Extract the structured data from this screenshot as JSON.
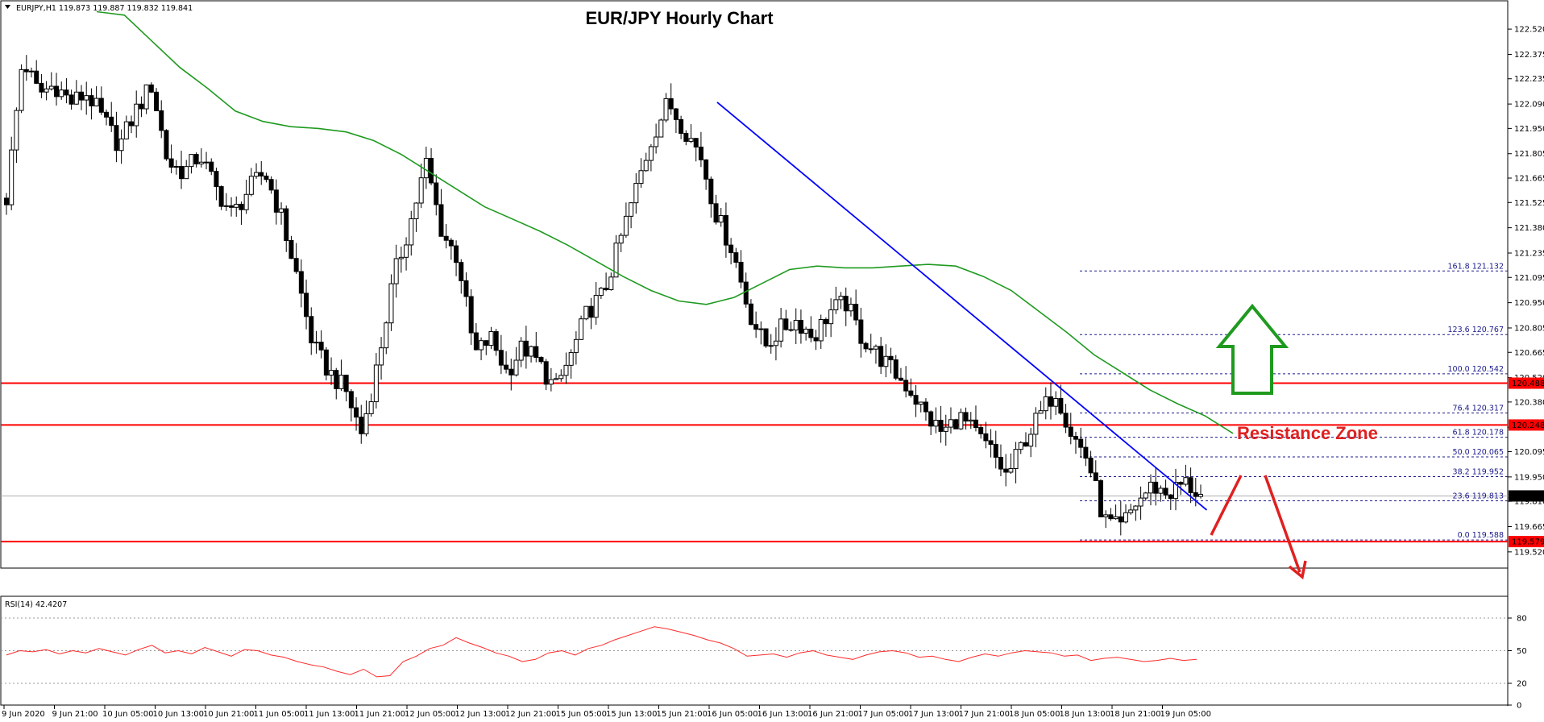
{
  "header": {
    "symbol_info": "EURJPY,H1  119.873 119.887 119.832 119.841"
  },
  "rsi_panel": {
    "label": "RSI(14) 42.4207"
  },
  "colors": {
    "candle": "#000000",
    "ma": "#1f9a1f",
    "trendline": "#0000ff",
    "resistance": "#ff0000",
    "fib": "#1a1a8c",
    "rsi_line": "#ff2a2a",
    "arrow_up": "#1f9a1f",
    "arrow_down": "#e02020"
  },
  "chart_data": [
    {
      "type": "candlestick",
      "title": "EUR/JPY Hourly Chart",
      "ylim": [
        119.45,
        122.65
      ],
      "y_ticks": [
        "122.520",
        "122.375",
        "122.235",
        "122.090",
        "121.950",
        "121.805",
        "121.665",
        "121.525",
        "121.380",
        "121.235",
        "121.095",
        "120.950",
        "120.805",
        "120.665",
        "120.520",
        "120.380",
        "120.235",
        "120.095",
        "119.950",
        "119.810",
        "119.665",
        "119.520"
      ],
      "x_ticks": [
        "9 Jun 2020",
        "9 Jun 21:00",
        "10 Jun 05:00",
        "10 Jun 13:00",
        "10 Jun 21:00",
        "11 Jun 05:00",
        "11 Jun 13:00",
        "11 Jun 21:00",
        "12 Jun 05:00",
        "12 Jun 13:00",
        "12 Jun 21:00",
        "15 Jun 05:00",
        "15 Jun 13:00",
        "15 Jun 21:00",
        "16 Jun 05:00",
        "16 Jun 13:00",
        "16 Jun 21:00",
        "17 Jun 05:00",
        "17 Jun 13:00",
        "17 Jun 21:00",
        "18 Jun 05:00",
        "18 Jun 13:00",
        "18 Jun 21:00",
        "19 Jun 05:00"
      ],
      "current_price": "119.841",
      "price_path": [
        121.55,
        122.35,
        122.15,
        122.2,
        122.1,
        122.15,
        122.0,
        121.85,
        122.05,
        122.2,
        121.75,
        121.7,
        121.8,
        121.6,
        121.45,
        121.6,
        121.7,
        121.45,
        121.1,
        120.7,
        120.55,
        120.45,
        120.2,
        120.6,
        121.1,
        121.4,
        121.75,
        121.35,
        121.2,
        120.65,
        120.75,
        120.55,
        120.7,
        120.6,
        120.45,
        120.65,
        120.9,
        121.0,
        121.3,
        121.6,
        121.9,
        122.1,
        121.95,
        121.8,
        121.45,
        121.25,
        120.9,
        120.7,
        120.8,
        120.85,
        120.75,
        120.9,
        120.95,
        120.75,
        120.65,
        120.55,
        120.45,
        120.3,
        120.2,
        120.3,
        120.2,
        120.1,
        119.95,
        120.15,
        120.3,
        120.45,
        120.2,
        120.05,
        119.7,
        119.65,
        119.8,
        119.9,
        119.85,
        119.92,
        119.84
      ],
      "series": [
        {
          "name": "",
          "kind": "moving-average",
          "values": [
            122.62,
            122.6,
            122.45,
            122.3,
            122.18,
            122.05,
            121.99,
            121.96,
            121.95,
            121.93,
            121.88,
            121.8,
            121.7,
            121.6,
            121.5,
            121.43,
            121.36,
            121.28,
            121.19,
            121.1,
            121.02,
            120.96,
            120.94,
            120.98,
            121.06,
            121.14,
            121.16,
            121.15,
            121.15,
            121.16,
            121.17,
            121.16,
            121.1,
            121.02,
            120.9,
            120.78,
            120.65,
            120.55,
            120.45,
            120.37,
            120.3,
            120.2
          ]
        }
      ],
      "trendline": {
        "from": {
          "x": "16 Jun 05:00",
          "y": 122.1
        },
        "to": {
          "x": "19 Jun 05:00",
          "y": 119.76
        }
      },
      "resistance_levels": [
        {
          "value": 120.488,
          "label": "120.488"
        },
        {
          "value": 120.248,
          "label": "120.248"
        },
        {
          "value": 119.579,
          "label": "119.579"
        }
      ],
      "fibonacci_levels": [
        {
          "ratio": "161.8",
          "value": 121.132,
          "label": "161.8 121.132"
        },
        {
          "ratio": "123.6",
          "value": 120.767,
          "label": "123.6 120.767"
        },
        {
          "ratio": "100.0",
          "value": 120.542,
          "label": "100.0 120.542"
        },
        {
          "ratio": "76.4",
          "value": 120.317,
          "label": "76.4 120.317"
        },
        {
          "ratio": "61.8",
          "value": 120.178,
          "label": "61.8 120.178"
        },
        {
          "ratio": "50.0",
          "value": 120.065,
          "label": "50.0 120.065"
        },
        {
          "ratio": "38.2",
          "value": 119.952,
          "label": "38.2 119.952"
        },
        {
          "ratio": "23.6",
          "value": 119.813,
          "label": "23.6 119.813"
        },
        {
          "ratio": "0.0",
          "value": 119.588,
          "label": "0.0 119.588"
        }
      ],
      "annotations": [
        {
          "text": "Resistance Zone",
          "color": "#e02020"
        }
      ]
    },
    {
      "type": "line",
      "title": "",
      "ylim": [
        0,
        100
      ],
      "y_ticks": [
        "80",
        "50",
        "20",
        "0"
      ],
      "levels": [
        80,
        50,
        20
      ],
      "values": [
        46,
        50,
        49,
        51,
        47,
        50,
        48,
        52,
        49,
        46,
        51,
        55,
        48,
        50,
        47,
        53,
        49,
        45,
        51,
        50,
        46,
        44,
        40,
        37,
        35,
        31,
        28,
        33,
        26,
        27,
        40,
        45,
        52,
        55,
        62,
        57,
        53,
        48,
        45,
        40,
        42,
        48,
        50,
        46,
        52,
        55,
        60,
        64,
        68,
        72,
        70,
        67,
        64,
        60,
        57,
        52,
        45,
        46,
        47,
        44,
        48,
        50,
        46,
        44,
        42,
        46,
        49,
        50,
        48,
        44,
        45,
        42,
        40,
        44,
        47,
        45,
        48,
        50,
        49,
        48,
        45,
        46,
        41,
        43,
        44,
        42,
        40,
        41,
        43,
        41,
        42
      ]
    }
  ]
}
